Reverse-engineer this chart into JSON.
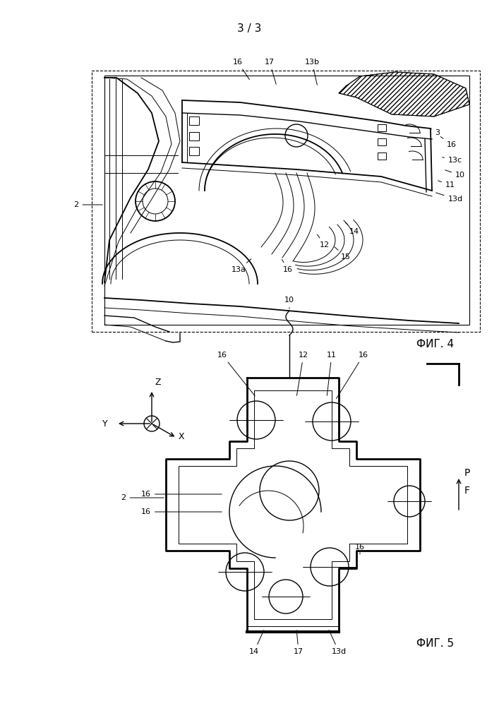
{
  "page_label": "3 / 3",
  "fig4_label": "ФИГ. 4",
  "fig5_label": "ФИГ. 5",
  "bg_color": "#ffffff",
  "line_color": "#000000"
}
